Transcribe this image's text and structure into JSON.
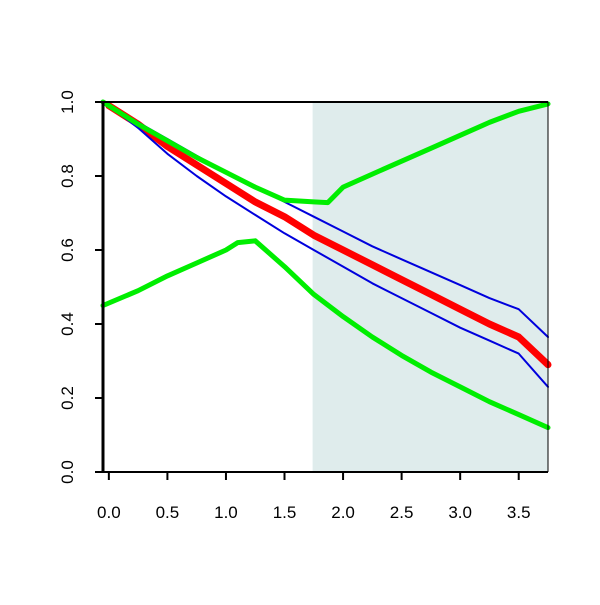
{
  "colors": {
    "background": "#ffffff",
    "shaded_region": "#dfecec",
    "axis": "#000000"
  },
  "chart_data": {
    "type": "line",
    "title": "",
    "xlabel": "",
    "ylabel": "",
    "xlim": [
      -0.05,
      3.75
    ],
    "ylim": [
      0.0,
      1.0
    ],
    "grid": false,
    "x_ticks": [
      0.0,
      0.5,
      1.0,
      1.5,
      2.0,
      2.5,
      3.0,
      3.5
    ],
    "x_tick_labels": [
      "0.0",
      "0.5",
      "1.0",
      "1.5",
      "2.0",
      "2.5",
      "3.0",
      "3.5"
    ],
    "y_ticks": [
      0.0,
      0.2,
      0.4,
      0.6,
      0.8,
      1.0
    ],
    "y_tick_labels": [
      "0.0",
      "0.2",
      "0.4",
      "0.6",
      "0.8",
      "1.0"
    ],
    "shaded_region": {
      "x_start": 1.74,
      "x_end": 3.75,
      "color": "#dfecec"
    },
    "series": [
      {
        "color": "#ff0000",
        "width": "thick",
        "x": [
          0.0,
          0.25,
          0.5,
          0.75,
          1.0,
          1.25,
          1.5,
          1.75,
          2.0,
          2.25,
          2.5,
          2.75,
          3.0,
          3.25,
          3.5,
          3.75
        ],
        "values": [
          0.99,
          0.94,
          0.88,
          0.83,
          0.78,
          0.73,
          0.69,
          0.64,
          0.6,
          0.56,
          0.52,
          0.48,
          0.44,
          0.4,
          0.365,
          0.29
        ]
      },
      {
        "color": "#0000dd",
        "width": "thin",
        "x": [
          0.0,
          0.25,
          0.5,
          0.75,
          1.0,
          1.25,
          1.5,
          1.75,
          2.0,
          2.25,
          2.5,
          2.75,
          3.0,
          3.25,
          3.5,
          3.75
        ],
        "values": [
          0.99,
          0.945,
          0.9,
          0.855,
          0.81,
          0.77,
          0.73,
          0.69,
          0.65,
          0.61,
          0.575,
          0.54,
          0.505,
          0.47,
          0.44,
          0.365
        ]
      },
      {
        "color": "#0000dd",
        "width": "thin",
        "x": [
          0.0,
          0.25,
          0.5,
          0.75,
          1.0,
          1.25,
          1.5,
          1.75,
          2.0,
          2.25,
          2.5,
          2.75,
          3.0,
          3.25,
          3.5,
          3.75
        ],
        "values": [
          0.99,
          0.93,
          0.86,
          0.8,
          0.745,
          0.695,
          0.645,
          0.6,
          0.555,
          0.51,
          0.47,
          0.43,
          0.39,
          0.355,
          0.32,
          0.23
        ]
      },
      {
        "color": "#00ee00",
        "width": "medium",
        "x": [
          -0.05,
          0.25,
          0.5,
          0.75,
          1.0,
          1.25,
          1.5,
          1.75,
          1.87,
          2.0,
          2.25,
          2.5,
          2.75,
          3.0,
          3.25,
          3.5,
          3.75
        ],
        "values": [
          1.0,
          0.94,
          0.895,
          0.85,
          0.81,
          0.77,
          0.735,
          0.73,
          0.728,
          0.77,
          0.805,
          0.84,
          0.875,
          0.91,
          0.945,
          0.975,
          0.995
        ]
      },
      {
        "color": "#00ee00",
        "width": "medium",
        "x": [
          -0.05,
          0.25,
          0.5,
          0.75,
          1.0,
          1.1,
          1.25,
          1.5,
          1.75,
          2.0,
          2.25,
          2.5,
          2.75,
          3.0,
          3.25,
          3.5,
          3.75
        ],
        "values": [
          0.45,
          0.49,
          0.53,
          0.565,
          0.6,
          0.62,
          0.625,
          0.555,
          0.48,
          0.42,
          0.365,
          0.315,
          0.27,
          0.23,
          0.19,
          0.155,
          0.12
        ]
      }
    ]
  }
}
